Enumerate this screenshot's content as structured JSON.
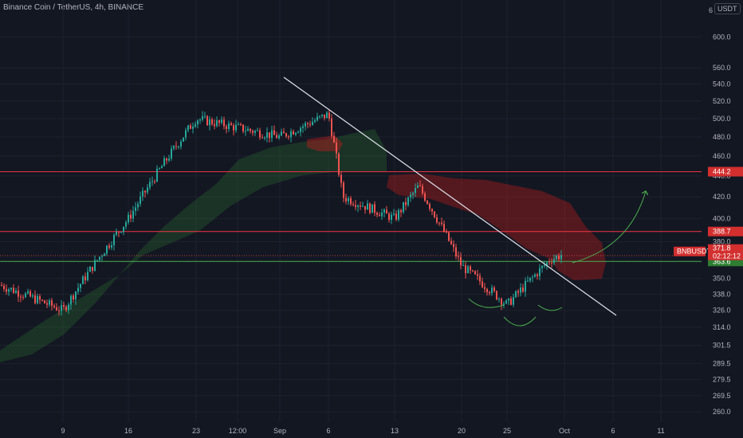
{
  "header": {
    "title": "Binance Coin / TetherUS, 4h, BINANCE",
    "currency": "USDT",
    "scale_digit": "6"
  },
  "colors": {
    "background": "#131722",
    "up": "#26a69a",
    "down": "#ef5350",
    "resistance": "#f23645",
    "support": "#4caf50",
    "trendline": "#e0e3eb",
    "cloud_green": "#2e7d32",
    "cloud_red": "#b71c1c"
  },
  "chart_data": {
    "type": "candlestick",
    "symbol": "BNBUSDT",
    "interval": "4h",
    "y_scale": "log",
    "ylim": [
      255,
      640
    ],
    "y_ticks": [
      "600.0",
      "560.0",
      "540.0",
      "520.0",
      "500.0",
      "480.0",
      "460.0",
      "440.0",
      "420.0",
      "400.0",
      "380.0",
      "350.0",
      "338.0",
      "326.0",
      "314.0",
      "301.5",
      "289.5",
      "279.5",
      "269.5",
      "260.0"
    ],
    "x_ticks": [
      "9",
      "16",
      "23",
      "12:00",
      "Sep",
      "6",
      "13",
      "20",
      "25",
      "Oct",
      "6",
      "11"
    ],
    "price_path": [
      [
        "9",
        326
      ],
      [
        "16",
        400
      ],
      [
        "23",
        500
      ],
      [
        "12:00",
        490
      ],
      [
        "Sep",
        480
      ],
      [
        "6",
        505
      ],
      [
        "6",
        420
      ],
      [
        "13",
        400
      ],
      [
        "13",
        430
      ],
      [
        "20",
        360
      ],
      [
        "25",
        330
      ],
      [
        "25",
        365
      ],
      [
        "Oct",
        370
      ]
    ],
    "levels": [
      {
        "label": "444.2",
        "value": 444.2,
        "color": "#f23645"
      },
      {
        "label": "388.7",
        "value": 388.7,
        "color": "#f23645"
      },
      {
        "label": "363.6",
        "value": 363.6,
        "color": "#4caf50"
      }
    ],
    "current_price": {
      "symbol": "BNBUSDT",
      "price": "371.8",
      "countdown": "02:12:12",
      "value": 371.8
    },
    "annotations": [
      "descending trendline",
      "inverse head and shoulders",
      "projected breakout arrow"
    ]
  }
}
